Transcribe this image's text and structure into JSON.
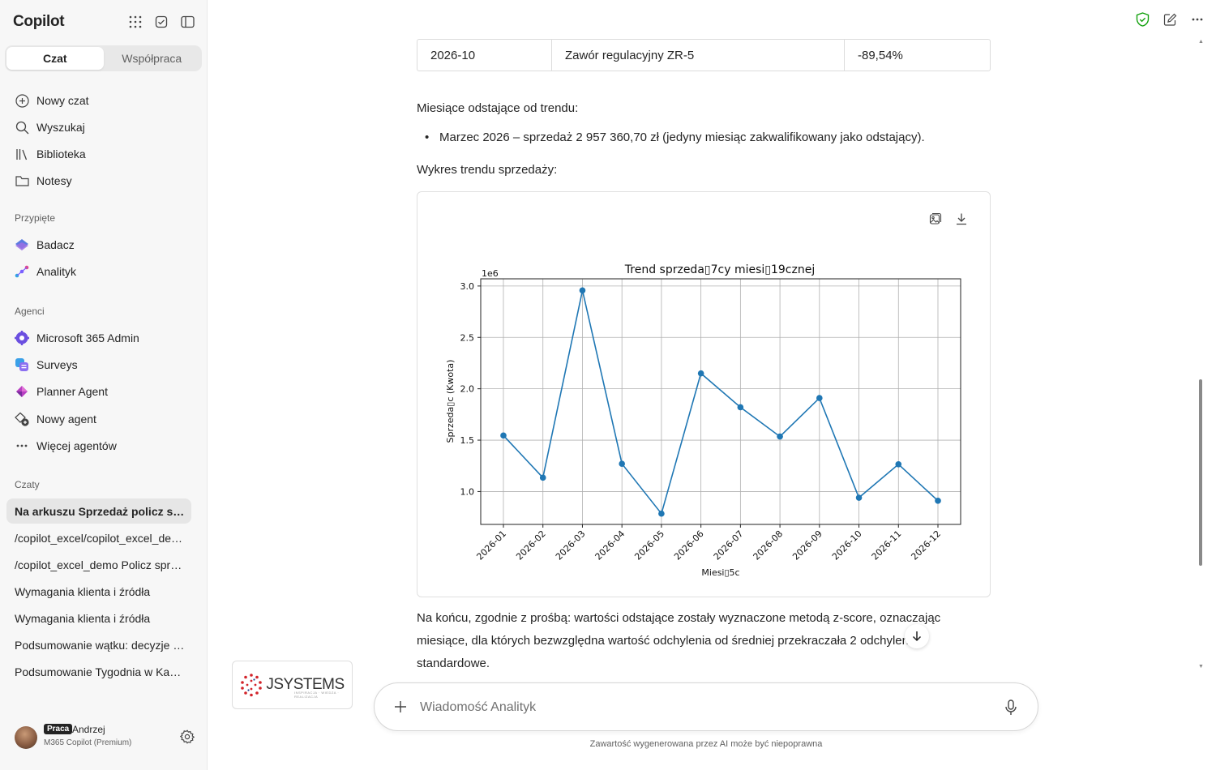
{
  "sidebar": {
    "app_title": "Copilot",
    "mode_tabs": [
      "Czat",
      "Współpraca"
    ],
    "active_mode": "Czat",
    "nav": [
      {
        "label": "Nowy czat",
        "icon": "plus-circle-icon"
      },
      {
        "label": "Wyszukaj",
        "icon": "search-icon"
      },
      {
        "label": "Biblioteka",
        "icon": "library-icon"
      },
      {
        "label": "Notesy",
        "icon": "folder-icon"
      }
    ],
    "pinned_label": "Przypięte",
    "pinned": [
      {
        "label": "Badacz",
        "icon": "researcher-icon"
      },
      {
        "label": "Analityk",
        "icon": "analyst-icon"
      }
    ],
    "agents_label": "Agenci",
    "agents": [
      {
        "label": "Microsoft 365 Admin",
        "icon": "admin-gear-icon"
      },
      {
        "label": "Surveys",
        "icon": "surveys-icon"
      },
      {
        "label": "Planner Agent",
        "icon": "planner-icon"
      },
      {
        "label": "Nowy agent",
        "icon": "new-agent-icon"
      },
      {
        "label": "Więcej agentów",
        "icon": "more-icon"
      }
    ],
    "chats_label": "Czaty",
    "chats": [
      "Na arkuszu Sprzedaż policz sprzedaż",
      "/copilot_excel/copilot_excel_demo",
      "/copilot_excel_demo Policz sprzedaż",
      "Wymagania klienta i źródła",
      "Wymagania klienta i źródła",
      "Podsumowanie wątku: decyzje i zadania",
      "Podsumowanie Tygodnia w Kanale"
    ],
    "user": {
      "badge": "Praca",
      "name": "Andrzej",
      "plan": "M365 Copilot (Premium)"
    }
  },
  "conversation": {
    "table_row": [
      "2026-10",
      "Zawór regulacyjny ZR-5",
      "-89,54%"
    ],
    "outliers_heading": "Miesiące odstające od trendu:",
    "outlier_bullet": "Marzec 2026 – sprzedaż 2 957 360,70 zł (jedyny miesiąc zakwalifikowany jako odstający).",
    "chart_heading": "Wykres trendu sprzedaży:",
    "closing_line_1": "Na końcu, zgodnie z prośbą: wartości odstające zostały wyznaczone metodą z-score, oznaczając",
    "closing_line_2": "miesiące, dla których bezwzględna wartość odchylenia od średniej przekraczała 2 odchylenia",
    "closing_line_3": "standardowe."
  },
  "composer": {
    "placeholder": "Wiadomość Analityk",
    "disclaimer": "Zawartość wygenerowana przez AI może być niepoprawna"
  },
  "logo": {
    "text": "JSYSTEMS",
    "tagline": "INSPIRACJA · WIEDZA · REALIZACJA"
  },
  "colors": {
    "accent": "#1f77b4",
    "shield": "#13a10e"
  },
  "chart_data": {
    "type": "line",
    "title": "Trend sprzeda▯7cy miesi▯19cznej",
    "xlabel": "Miesi▯5c",
    "ylabel": "Sprzeda▯c (Kwota)",
    "offset_label": "1e6",
    "categories": [
      "2026-01",
      "2026-02",
      "2026-03",
      "2026-04",
      "2026-05",
      "2026-06",
      "2026-07",
      "2026-08",
      "2026-09",
      "2026-10",
      "2026-11",
      "2026-12"
    ],
    "values": [
      1.545,
      1.135,
      2.957,
      1.27,
      0.785,
      2.15,
      1.82,
      1.535,
      1.91,
      0.94,
      1.265,
      0.91
    ],
    "yticks": [
      "1.0",
      "1.5",
      "2.0",
      "2.5",
      "3.0"
    ],
    "ylim": [
      0.68,
      3.07
    ],
    "grid": true,
    "color": "#1f77b4"
  }
}
